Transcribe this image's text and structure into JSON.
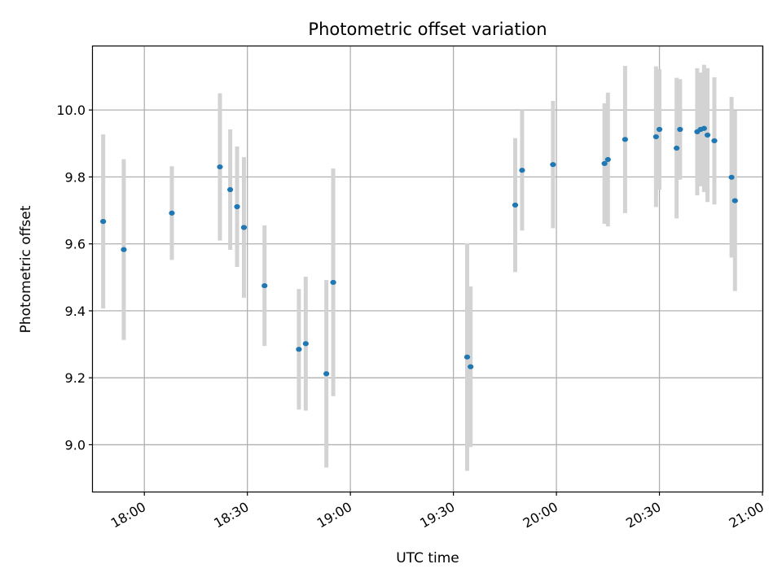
{
  "chart_data": {
    "type": "scatter",
    "title": "Photometric offset variation",
    "xlabel": "UTC time",
    "ylabel": "Photometric offset",
    "x_unit": "time (HH:MM UTC)",
    "xlim": [
      "17:45",
      "21:00"
    ],
    "ylim": [
      8.86,
      10.19
    ],
    "x_ticks": [
      "18:00",
      "18:30",
      "19:00",
      "19:30",
      "20:00",
      "20:30",
      "21:00"
    ],
    "y_ticks": [
      9.0,
      9.2,
      9.4,
      9.6,
      9.8,
      10.0
    ],
    "grid": true,
    "legend": "none",
    "colors": {
      "point": "#1f77b4",
      "errorbar": "#d3d3d3"
    },
    "series": [
      {
        "points": [
          {
            "x": "17:48",
            "y": 9.667,
            "err": 0.26
          },
          {
            "x": "17:54",
            "y": 9.583,
            "err": 0.27
          },
          {
            "x": "18:08",
            "y": 9.692,
            "err": 0.14
          },
          {
            "x": "18:22",
            "y": 9.83,
            "err": 0.22
          },
          {
            "x": "18:25",
            "y": 9.762,
            "err": 0.18
          },
          {
            "x": "18:27",
            "y": 9.711,
            "err": 0.18
          },
          {
            "x": "18:29",
            "y": 9.649,
            "err": 0.21
          },
          {
            "x": "18:35",
            "y": 9.475,
            "err": 0.18
          },
          {
            "x": "18:45",
            "y": 9.285,
            "err": 0.18
          },
          {
            "x": "18:47",
            "y": 9.302,
            "err": 0.2
          },
          {
            "x": "18:53",
            "y": 9.212,
            "err": 0.28
          },
          {
            "x": "18:55",
            "y": 9.485,
            "err": 0.34
          },
          {
            "x": "19:34",
            "y": 9.262,
            "err": 0.34
          },
          {
            "x": "19:35",
            "y": 9.233,
            "err": 0.24
          },
          {
            "x": "19:48",
            "y": 9.716,
            "err": 0.2
          },
          {
            "x": "19:50",
            "y": 9.82,
            "err": 0.18
          },
          {
            "x": "19:59",
            "y": 9.837,
            "err": 0.19
          },
          {
            "x": "20:14",
            "y": 9.84,
            "err": 0.18
          },
          {
            "x": "20:15",
            "y": 9.852,
            "err": 0.2
          },
          {
            "x": "20:20",
            "y": 9.912,
            "err": 0.22
          },
          {
            "x": "20:29",
            "y": 9.92,
            "err": 0.21
          },
          {
            "x": "20:30",
            "y": 9.942,
            "err": 0.18
          },
          {
            "x": "20:35",
            "y": 9.886,
            "err": 0.21
          },
          {
            "x": "20:36",
            "y": 9.942,
            "err": 0.15
          },
          {
            "x": "20:41",
            "y": 9.935,
            "err": 0.19
          },
          {
            "x": "20:42",
            "y": 9.942,
            "err": 0.17
          },
          {
            "x": "20:43",
            "y": 9.945,
            "err": 0.19
          },
          {
            "x": "20:44",
            "y": 9.925,
            "err": 0.2
          },
          {
            "x": "20:46",
            "y": 9.908,
            "err": 0.19
          },
          {
            "x": "20:51",
            "y": 9.799,
            "err": 0.24
          },
          {
            "x": "20:52",
            "y": 9.729,
            "err": 0.27
          }
        ]
      }
    ]
  }
}
